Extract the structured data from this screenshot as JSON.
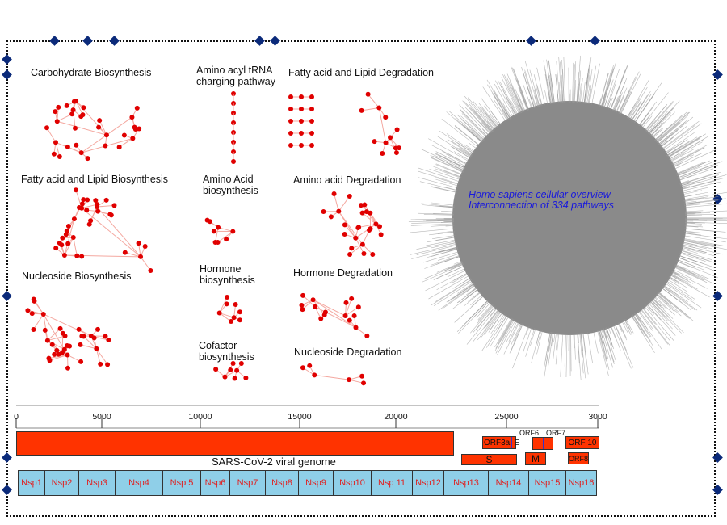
{
  "colors": {
    "node": "#e00000",
    "edge": "#f4a8a0",
    "genome": "#ff3300",
    "nsp": "#8fcfe8",
    "nsp_text": "#e02020",
    "caption": "#1a1adc",
    "circle": "#8a8a8a",
    "marker": "#0b2a7a"
  },
  "panels": [
    {
      "id": "carb",
      "label": "Carbohydrate Biosynthesis"
    },
    {
      "id": "trna",
      "label": "Amino acyl tRNA\ncharging pathway"
    },
    {
      "id": "fadeg",
      "label": "Fatty acid and Lipid Degradation"
    },
    {
      "id": "fabio",
      "label": "Fatty acid and Lipid Biosynthesis"
    },
    {
      "id": "aabio",
      "label": "Amino Acid\nbiosynthesis"
    },
    {
      "id": "aadeg",
      "label": "Amino acid Degradation"
    },
    {
      "id": "nucbio",
      "label": "Nucleoside Biosynthesis"
    },
    {
      "id": "hormbio",
      "label": "Hormone\nbiosynthesis"
    },
    {
      "id": "hormdeg",
      "label": "Hormone Degradation"
    },
    {
      "id": "cofbio",
      "label": "Cofactor\nbiosynthesis"
    },
    {
      "id": "nucdeg",
      "label": "Nucleoside Degradation"
    }
  ],
  "overview": {
    "line1": "Homo sapiens cellular overview",
    "line2": "Interconnection of 334 pathways"
  },
  "genome": {
    "axis_ticks": [
      "0",
      "5000",
      "10000",
      "15000",
      "20000",
      "25000",
      "3000"
    ],
    "title": "SARS-CoV-2 viral genome",
    "orfs": [
      "ORF3a",
      "E",
      "ORF6",
      "ORF7",
      "ORF 10",
      "S",
      "M",
      "ORF8"
    ],
    "nsps": [
      "Nsp1",
      "Nsp2",
      "Nsp3",
      "Nsp4",
      "Nsp 5",
      "Nsp6",
      "Nsp7",
      "Nsp8",
      "Nsp9",
      "Nsp10",
      "Nsp 11",
      "Nsp12",
      "Nsp13",
      "Nsp14",
      "Nsp15",
      "Nsp16"
    ]
  }
}
